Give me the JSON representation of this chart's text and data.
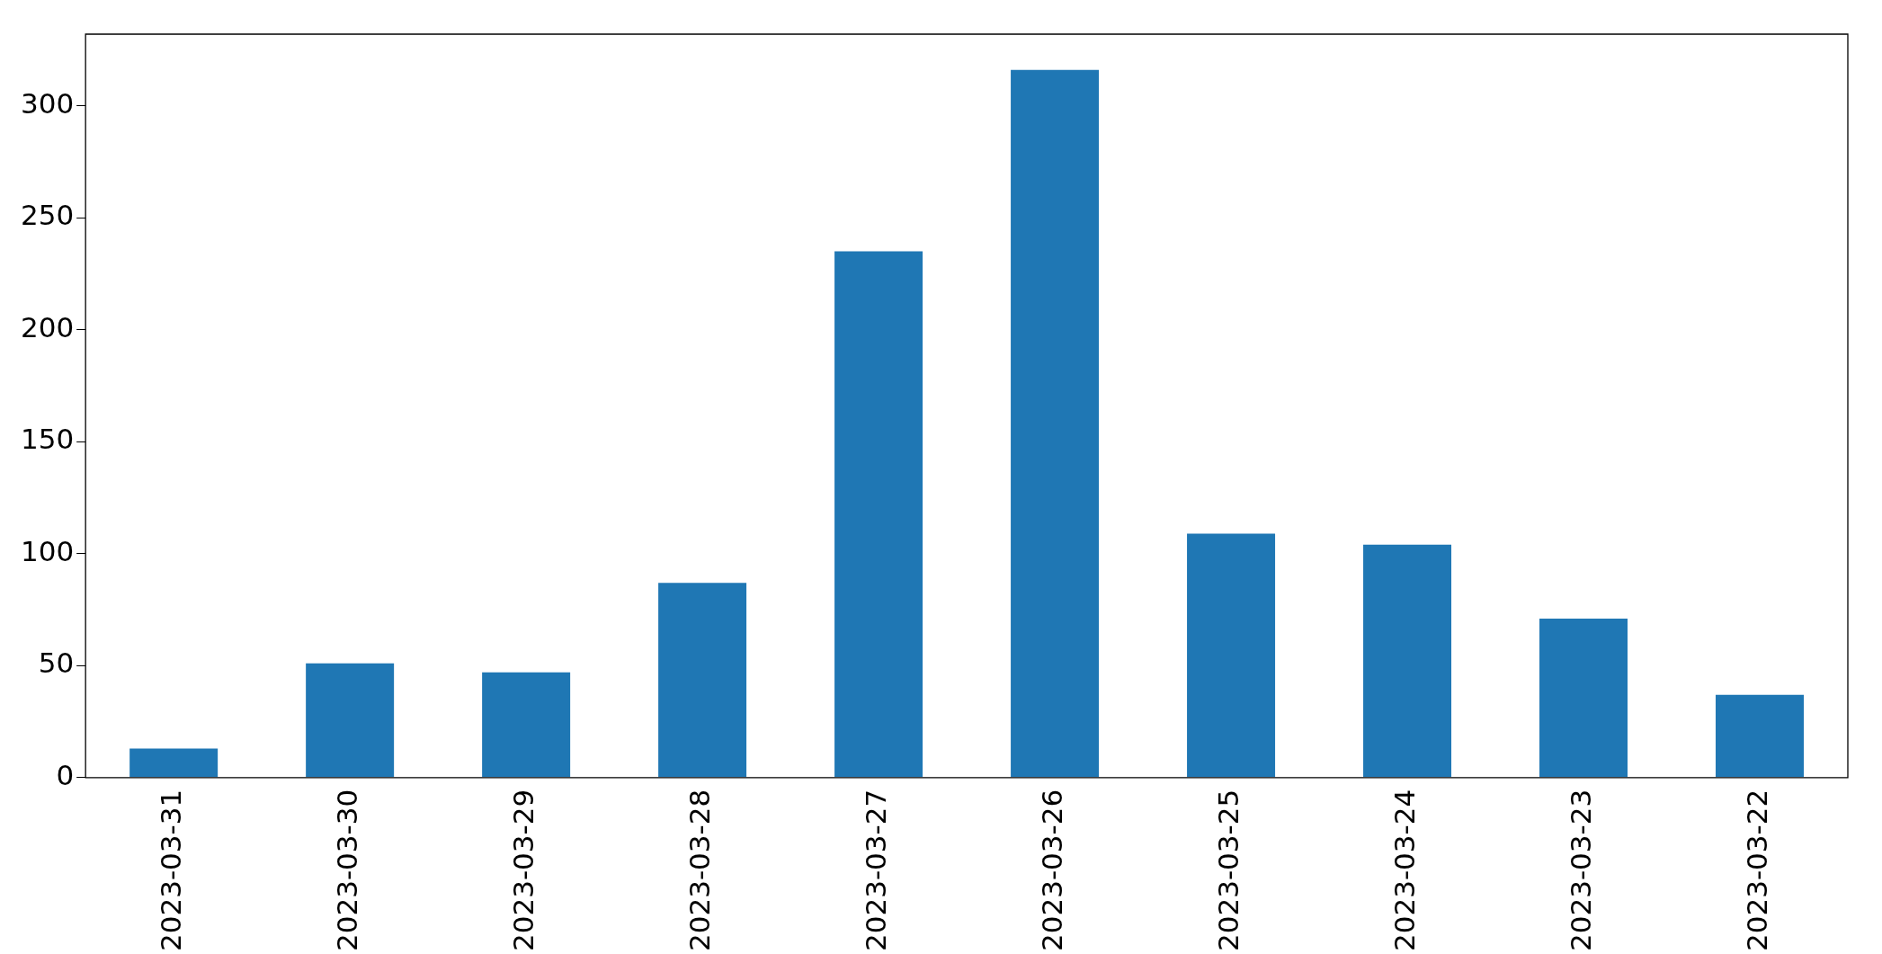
{
  "chart_data": {
    "type": "bar",
    "categories": [
      "2023-03-31",
      "2023-03-30",
      "2023-03-29",
      "2023-03-28",
      "2023-03-27",
      "2023-03-26",
      "2023-03-25",
      "2023-03-24",
      "2023-03-23",
      "2023-03-22"
    ],
    "values": [
      13,
      51,
      47,
      87,
      235,
      316,
      109,
      104,
      71,
      37
    ],
    "color": "#1f77b4",
    "ylim": [
      0,
      332
    ],
    "yticks": [
      0,
      50,
      100,
      150,
      200,
      250,
      300
    ],
    "grid": false,
    "legend": false
  }
}
